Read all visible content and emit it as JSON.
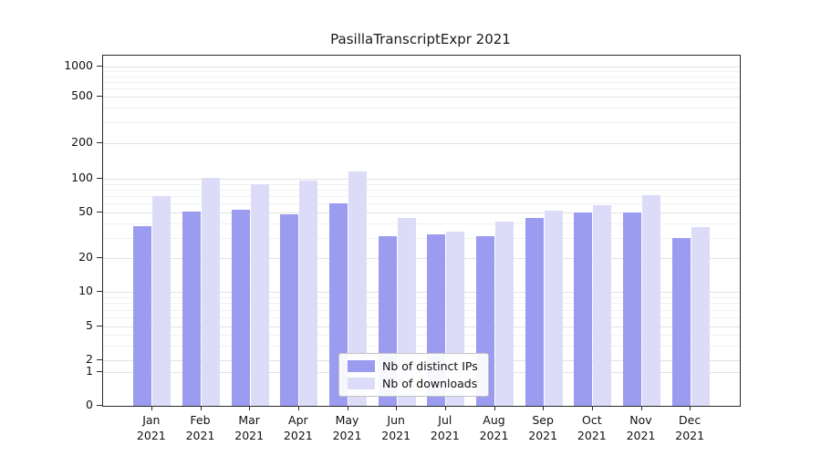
{
  "chart_data": {
    "type": "bar",
    "title": "PasillaTranscriptExpr 2021",
    "xlabel": "",
    "ylabel": "",
    "yscale": "symlog",
    "y_ticks": [
      0,
      1,
      2,
      5,
      10,
      20,
      50,
      100,
      200,
      500,
      1000
    ],
    "ylim": [
      0,
      1000
    ],
    "grid": "horizontal",
    "legend_position": "bottom-center-inside",
    "categories": [
      "Jan",
      "Feb",
      "Mar",
      "Apr",
      "May",
      "Jun",
      "Jul",
      "Aug",
      "Sep",
      "Oct",
      "Nov",
      "Dec"
    ],
    "year_label": "2021",
    "series": [
      {
        "name": "Nb of distinct IPs",
        "color": "#9b9bef",
        "values": [
          38,
          51,
          53,
          48,
          60,
          31,
          32,
          31,
          45,
          50,
          50,
          30
        ]
      },
      {
        "name": "Nb of downloads",
        "color": "#dcdcf9",
        "values": [
          70,
          102,
          90,
          97,
          115,
          45,
          34,
          42,
          52,
          58,
          72,
          37
        ]
      }
    ]
  }
}
